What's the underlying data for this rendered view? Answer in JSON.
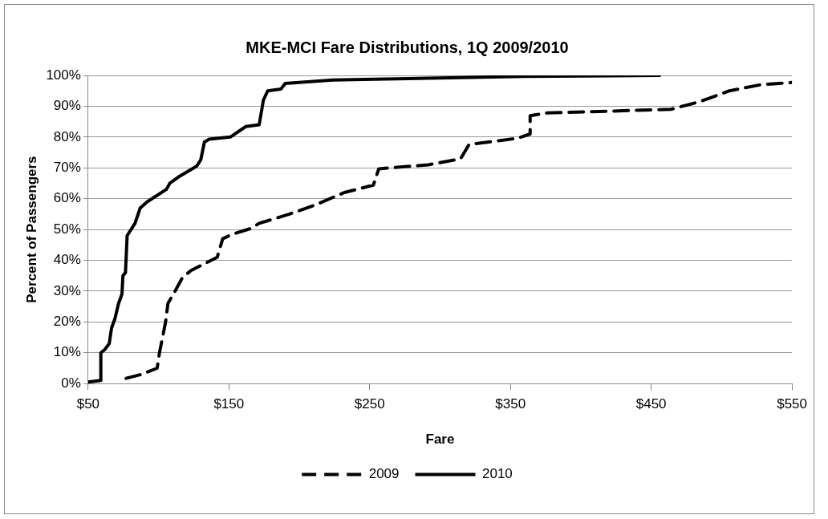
{
  "chart_data": {
    "type": "line",
    "title": "MKE-MCI Fare Distributions, 1Q 2009/2010",
    "xlabel": "Fare",
    "ylabel": "Percent of Passengers",
    "xlim": [
      50,
      550
    ],
    "xticks": [
      {
        "value": 50,
        "label": "$50"
      },
      {
        "value": 150,
        "label": "$150"
      },
      {
        "value": 250,
        "label": "$250"
      },
      {
        "value": 350,
        "label": "$350"
      },
      {
        "value": 450,
        "label": "$450"
      },
      {
        "value": 550,
        "label": "$550"
      }
    ],
    "ylim": [
      0,
      100
    ],
    "yticks": [
      {
        "value": 0,
        "label": "0%"
      },
      {
        "value": 10,
        "label": "10%"
      },
      {
        "value": 20,
        "label": "20%"
      },
      {
        "value": 30,
        "label": "30%"
      },
      {
        "value": 40,
        "label": "40%"
      },
      {
        "value": 50,
        "label": "50%"
      },
      {
        "value": 60,
        "label": "60%"
      },
      {
        "value": 70,
        "label": "70%"
      },
      {
        "value": 80,
        "label": "80%"
      },
      {
        "value": 90,
        "label": "90%"
      },
      {
        "value": 100,
        "label": "100%"
      }
    ],
    "grid": "y",
    "legend": "bottom",
    "marker": "none",
    "series": [
      {
        "name": "2009",
        "color": "#000000",
        "line_style": "dashed",
        "x": [
          77,
          88,
          99,
          100.5,
          105,
          106.7,
          111,
          117,
          123,
          133,
          141.7,
          145.6,
          152,
          166,
          171.5,
          193,
          211.5,
          232,
          252.6,
          256.5,
          291.6,
          314.5,
          320.6,
          355,
          364,
          364,
          376,
          464,
          484.6,
          505.6,
          528,
          550
        ],
        "values": [
          1.7,
          3,
          5,
          9.6,
          20,
          26,
          29.4,
          34.4,
          36.7,
          39,
          41,
          47,
          48.4,
          50.4,
          52,
          55,
          58,
          62,
          64.4,
          69.7,
          71,
          72.9,
          77.6,
          79.6,
          81,
          86.9,
          87.8,
          89,
          91.5,
          95,
          97,
          97.7
        ]
      },
      {
        "name": "2010",
        "color": "#000000",
        "line_style": "solid",
        "x": [
          50,
          59,
          59,
          61.7,
          65,
          66.6,
          69,
          71.6,
          74,
          74.7,
          76.5,
          77.7,
          83.3,
          87,
          92,
          105.5,
          108,
          114,
          127,
          130,
          132.6,
          136,
          151,
          162,
          171.5,
          174.5,
          177.6,
          187,
          190,
          224,
          261,
          359.5,
          456
        ],
        "values": [
          0.5,
          1,
          10,
          11,
          13,
          18,
          21,
          26,
          29,
          35,
          36,
          48,
          52,
          57,
          59,
          63,
          65,
          67,
          70.5,
          72.6,
          78.4,
          79.3,
          80,
          83.4,
          84,
          92,
          95,
          95.6,
          97.4,
          98.5,
          98.8,
          99.7,
          100
        ]
      }
    ]
  }
}
